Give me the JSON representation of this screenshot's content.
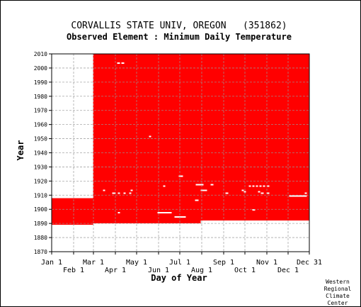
{
  "chart_data": {
    "type": "heatmap",
    "title": "CORVALLIS STATE UNIV, OREGON   (351862)",
    "subtitle": "Observed Element : Minimum Daily Temperature",
    "xlabel": "Day of Year",
    "ylabel": "Year",
    "credit": [
      "Western",
      "Regional",
      "Climate",
      "Center"
    ],
    "xlim": [
      1,
      365
    ],
    "ylim": [
      1870,
      2010
    ],
    "x_ticks": [
      {
        "day": 1,
        "label": "Jan 1",
        "row": 1
      },
      {
        "day": 32,
        "label": "Feb 1",
        "row": 2
      },
      {
        "day": 60,
        "label": "Mar 1",
        "row": 1
      },
      {
        "day": 91,
        "label": "Apr 1",
        "row": 2
      },
      {
        "day": 121,
        "label": "May 1",
        "row": 1
      },
      {
        "day": 152,
        "label": "Jun 1",
        "row": 2
      },
      {
        "day": 182,
        "label": "Jul 1",
        "row": 1
      },
      {
        "day": 213,
        "label": "Aug 1",
        "row": 2
      },
      {
        "day": 244,
        "label": "Sep 1",
        "row": 1
      },
      {
        "day": 274,
        "label": "Oct 1",
        "row": 2
      },
      {
        "day": 305,
        "label": "Nov 1",
        "row": 1
      },
      {
        "day": 335,
        "label": "Dec 1",
        "row": 2
      },
      {
        "day": 365,
        "label": "Dec 31",
        "row": 1
      }
    ],
    "y_ticks": [
      1870,
      1880,
      1890,
      1900,
      1910,
      1920,
      1930,
      1940,
      1950,
      1960,
      1970,
      1980,
      1990,
      2000,
      2010
    ],
    "grid": true,
    "colors": {
      "present": "#ff0000",
      "missing": "#ffffff",
      "grid": "#999999",
      "axis": "#000000"
    },
    "data_present": [
      {
        "year_start": 1908,
        "year_end": 2010,
        "day_start": 60,
        "day_end": 365
      },
      {
        "year_start": 1889,
        "year_end": 1908,
        "day_start": 1,
        "day_end": 365
      }
    ],
    "data_missing": [
      {
        "year_start": 1870,
        "year_end": 1889,
        "day_start": 1,
        "day_end": 365
      },
      {
        "year_start": 1889,
        "year_end": 1890,
        "day_start": 60,
        "day_end": 365
      },
      {
        "year_start": 1890,
        "year_end": 1891,
        "day_start": 212,
        "day_end": 365
      },
      {
        "year_start": 1908,
        "year_end": 2010,
        "day_start": 1,
        "day_end": 59
      },
      {
        "year_start": 1909,
        "year_end": 1910,
        "day_start": 1,
        "day_end": 15
      },
      {
        "year_start": 1967,
        "year_end": 1968,
        "day_start": 31,
        "day_end": 34
      },
      {
        "year_start": 2003,
        "year_end": 2004,
        "day_start": 94,
        "day_end": 97
      },
      {
        "year_start": 2003,
        "year_end": 2004,
        "day_start": 100,
        "day_end": 103
      },
      {
        "year_start": 1951,
        "year_end": 1952,
        "day_start": 139,
        "day_end": 141
      },
      {
        "year_start": 1923,
        "year_end": 1924,
        "day_start": 181,
        "day_end": 186
      },
      {
        "year_start": 1917,
        "year_end": 1918,
        "day_start": 205,
        "day_end": 215
      },
      {
        "year_start": 1913,
        "year_end": 1914,
        "day_start": 212,
        "day_end": 220
      },
      {
        "year_start": 1917,
        "year_end": 1918,
        "day_start": 226,
        "day_end": 229
      },
      {
        "year_start": 1916,
        "year_end": 1917,
        "day_start": 159,
        "day_end": 161
      },
      {
        "year_start": 1913,
        "year_end": 1914,
        "day_start": 74,
        "day_end": 76
      },
      {
        "year_start": 1911,
        "year_end": 1912,
        "day_start": 87,
        "day_end": 91
      },
      {
        "year_start": 1911,
        "year_end": 1912,
        "day_start": 95,
        "day_end": 97
      },
      {
        "year_start": 1911,
        "year_end": 1912,
        "day_start": 103,
        "day_end": 105
      },
      {
        "year_start": 1913,
        "year_end": 1914,
        "day_start": 113,
        "day_end": 115
      },
      {
        "year_start": 1911,
        "year_end": 1912,
        "day_start": 111,
        "day_end": 113
      },
      {
        "year_start": 1897,
        "year_end": 1898,
        "day_start": 95,
        "day_end": 97
      },
      {
        "year_start": 1897,
        "year_end": 1898,
        "day_start": 151,
        "day_end": 170
      },
      {
        "year_start": 1894,
        "year_end": 1895,
        "day_start": 175,
        "day_end": 190
      },
      {
        "year_start": 1906,
        "year_end": 1907,
        "day_start": 204,
        "day_end": 208
      },
      {
        "year_start": 1911,
        "year_end": 1912,
        "day_start": 247,
        "day_end": 250
      },
      {
        "year_start": 1913,
        "year_end": 1914,
        "day_start": 270,
        "day_end": 272
      },
      {
        "year_start": 1912,
        "year_end": 1913,
        "day_start": 273,
        "day_end": 275
      },
      {
        "year_start": 1916,
        "year_end": 1917,
        "day_start": 280,
        "day_end": 282
      },
      {
        "year_start": 1916,
        "year_end": 1917,
        "day_start": 285,
        "day_end": 287
      },
      {
        "year_start": 1916,
        "year_end": 1917,
        "day_start": 290,
        "day_end": 292
      },
      {
        "year_start": 1916,
        "year_end": 1917,
        "day_start": 295,
        "day_end": 297
      },
      {
        "year_start": 1916,
        "year_end": 1917,
        "day_start": 300,
        "day_end": 302
      },
      {
        "year_start": 1916,
        "year_end": 1917,
        "day_start": 306,
        "day_end": 308
      },
      {
        "year_start": 1912,
        "year_end": 1913,
        "day_start": 293,
        "day_end": 295
      },
      {
        "year_start": 1911,
        "year_end": 1912,
        "day_start": 297,
        "day_end": 300
      },
      {
        "year_start": 1911,
        "year_end": 1912,
        "day_start": 305,
        "day_end": 308
      },
      {
        "year_start": 1909,
        "year_end": 1910,
        "day_start": 337,
        "day_end": 361
      },
      {
        "year_start": 1911,
        "year_end": 1912,
        "day_start": 359,
        "day_end": 361
      },
      {
        "year_start": 1899,
        "year_end": 1900,
        "day_start": 285,
        "day_end": 288
      },
      {
        "year_start": 1891,
        "year_end": 1892,
        "day_start": 212,
        "day_end": 365
      }
    ]
  }
}
